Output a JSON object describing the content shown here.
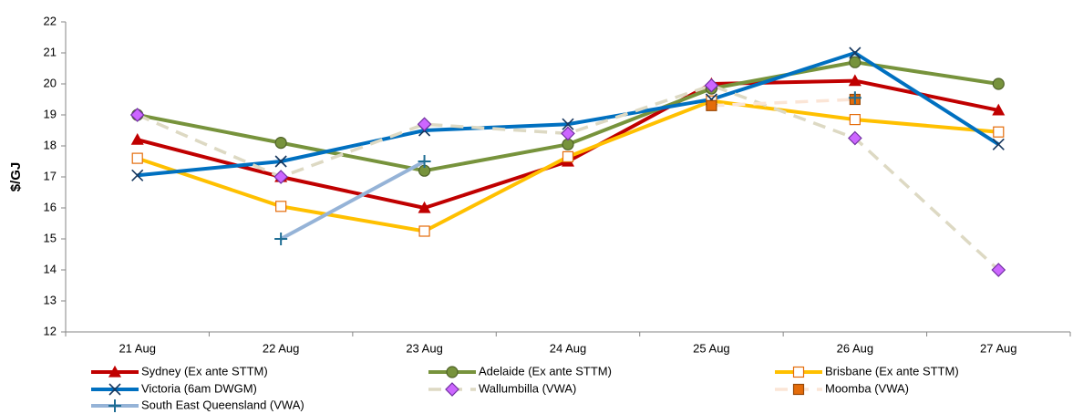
{
  "chart_data": {
    "type": "line",
    "y_label": "$/GJ",
    "categories": [
      "21 Aug",
      "22 Aug",
      "23 Aug",
      "24 Aug",
      "25 Aug",
      "26 Aug",
      "27 Aug"
    ],
    "ylim": [
      12,
      22
    ],
    "yticks": [
      12,
      13,
      14,
      15,
      16,
      17,
      18,
      19,
      20,
      21,
      22
    ],
    "series": [
      {
        "name": "Sydney (Ex ante STTM)",
        "color": "#c00000",
        "marker": "triangle",
        "marker_color": "#c00000",
        "marker_fill": "#c00000",
        "dashed": false,
        "values": [
          18.2,
          17.0,
          16.0,
          17.5,
          20.0,
          20.1,
          19.15
        ]
      },
      {
        "name": "Adelaide (Ex ante STTM)",
        "color": "#77933c",
        "marker": "circle",
        "marker_color": "#4f6228",
        "marker_fill": "#77933c",
        "dashed": false,
        "values": [
          19.0,
          18.1,
          17.2,
          18.05,
          19.85,
          20.7,
          20.0
        ]
      },
      {
        "name": "Brisbane (Ex ante STTM)",
        "color": "#ffc000",
        "marker": "square",
        "marker_color": "#e46c0a",
        "marker_fill": "#ffffff",
        "dashed": false,
        "values": [
          17.6,
          16.05,
          15.25,
          17.65,
          19.45,
          18.85,
          18.45
        ]
      },
      {
        "name": "Victoria (6am DWGM)",
        "color": "#0070c0",
        "marker": "x",
        "marker_color": "#17375e",
        "marker_fill": "#17375e",
        "dashed": false,
        "values": [
          17.05,
          17.5,
          18.5,
          18.7,
          19.5,
          21.0,
          18.05
        ]
      },
      {
        "name": "Wallumbilla (VWA)",
        "color": "#ddd9c3",
        "marker": "diamond",
        "marker_color": "#7030a0",
        "marker_fill": "#cc66ff",
        "dashed": true,
        "values": [
          19.0,
          17.0,
          18.7,
          18.4,
          19.95,
          18.25,
          14.0
        ]
      },
      {
        "name": "Moomba (VWA)",
        "color": "#fbe5d6",
        "marker": "square",
        "marker_color": "#984807",
        "marker_fill": "#e46c0a",
        "dashed": true,
        "values": [
          null,
          null,
          null,
          null,
          19.3,
          19.5,
          null
        ]
      },
      {
        "name": "South East Queensland (VWA)",
        "color": "#95b3d7",
        "marker": "plus",
        "marker_color": "#1f6e94",
        "marker_fill": "#1f6e94",
        "dashed": false,
        "values": [
          null,
          15.0,
          17.5,
          null,
          null,
          19.55,
          null
        ]
      }
    ]
  }
}
